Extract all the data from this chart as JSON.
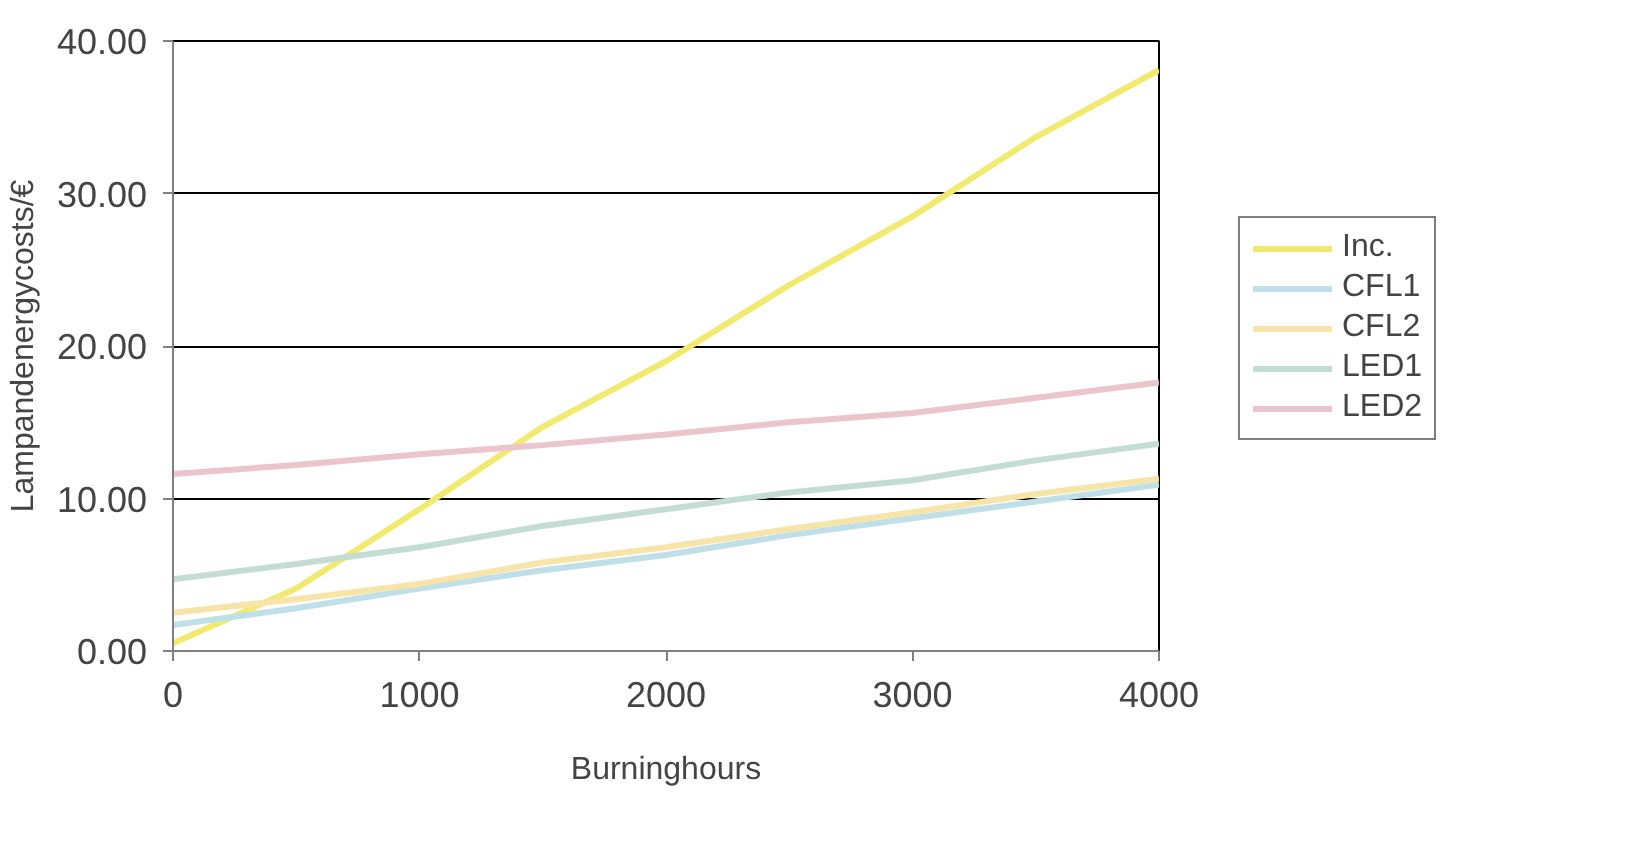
{
  "chart_data": {
    "type": "line",
    "xlabel": "Burninghours",
    "ylabel": "Lampandenergycosts/€",
    "x": [
      0,
      500,
      1000,
      1500,
      2000,
      2500,
      3000,
      3500,
      4000
    ],
    "xlim": [
      0,
      4000
    ],
    "xticks": [
      0,
      1000,
      2000,
      3000,
      4000
    ],
    "ylim": [
      0,
      40
    ],
    "yticks": [
      {
        "value": 0,
        "label": "0.00"
      },
      {
        "value": 10,
        "label": "10.00"
      },
      {
        "value": 20,
        "label": "20.00"
      },
      {
        "value": 30,
        "label": "30.00"
      },
      {
        "value": 40,
        "label": "40.00"
      }
    ],
    "grid": "y",
    "legend": "right",
    "marker": "none",
    "line_style": "solid",
    "series": [
      {
        "name": "Inc.",
        "color": "#f2ea6e",
        "values": [
          0.5,
          4.1,
          9.3,
          14.7,
          19.0,
          24.0,
          28.5,
          33.7,
          38.1
        ]
      },
      {
        "name": "CFL1",
        "color": "#bfe0e8",
        "values": [
          1.7,
          2.8,
          4.1,
          5.3,
          6.3,
          7.6,
          8.7,
          9.8,
          10.9
        ]
      },
      {
        "name": "CFL2",
        "color": "#f7e4a8",
        "values": [
          2.5,
          3.4,
          4.4,
          5.8,
          6.8,
          8.0,
          9.1,
          10.3,
          11.3
        ]
      },
      {
        "name": "LED1",
        "color": "#c3ddd2",
        "values": [
          4.7,
          5.7,
          6.8,
          8.2,
          9.3,
          10.4,
          11.2,
          12.5,
          13.6
        ]
      },
      {
        "name": "LED2",
        "color": "#ecc4cc",
        "values": [
          11.6,
          12.2,
          12.9,
          13.5,
          14.2,
          15.0,
          15.6,
          16.6,
          17.6
        ]
      }
    ]
  }
}
